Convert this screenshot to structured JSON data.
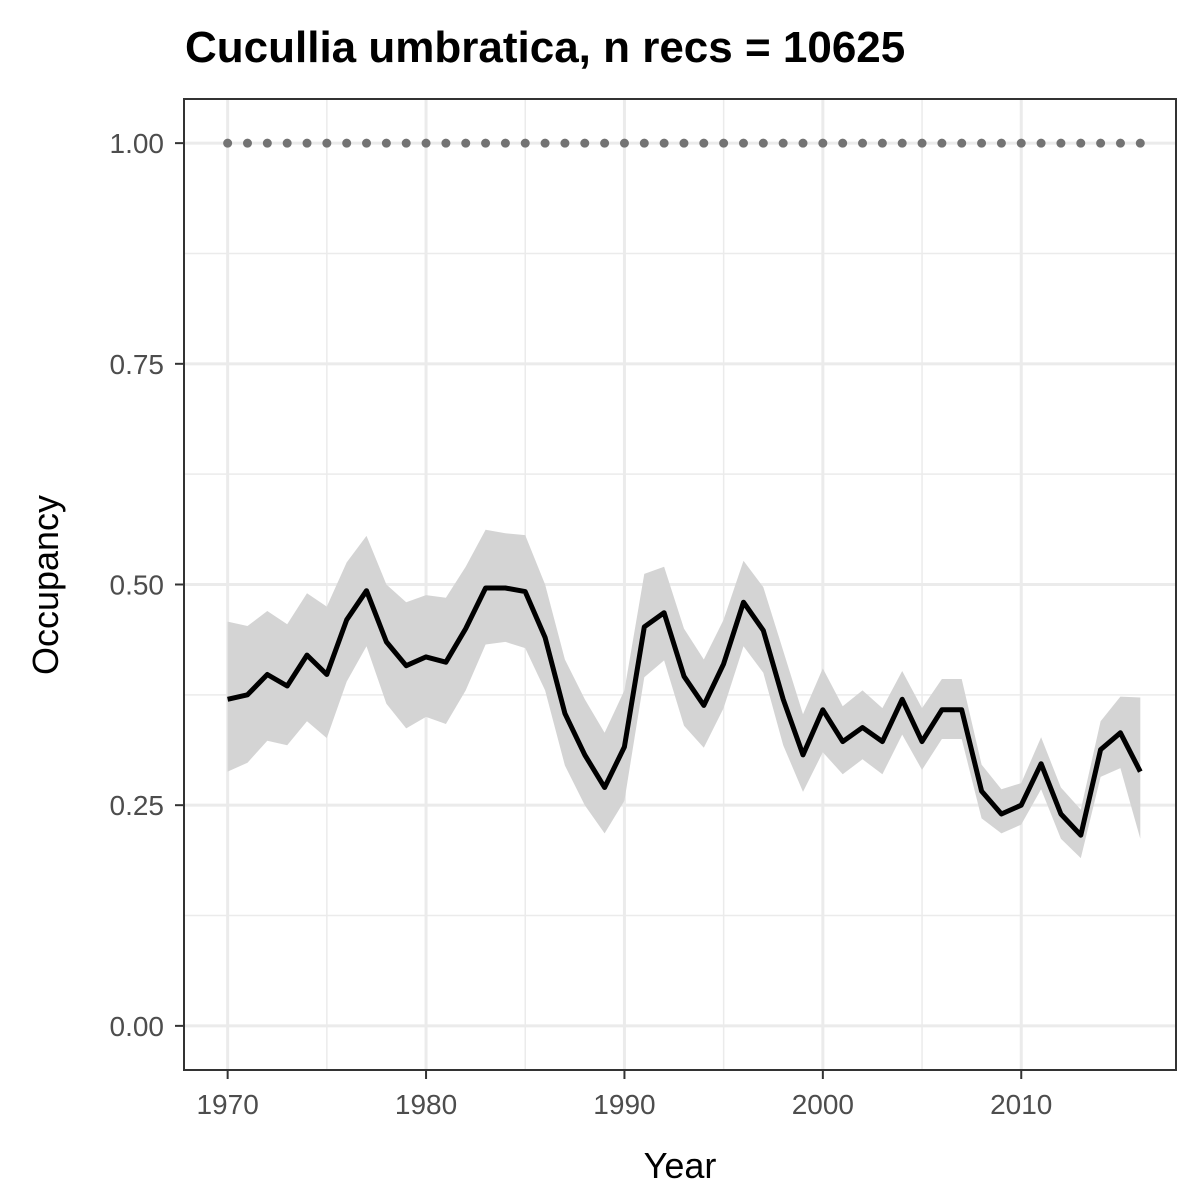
{
  "chart_data": {
    "type": "line",
    "title": "Cucullia umbratica, n recs = 10625",
    "xlabel": "Year",
    "ylabel": "Occupancy",
    "xlim": [
      1967.8,
      2017.8
    ],
    "ylim": [
      -0.05,
      1.05
    ],
    "x_ticks": [
      1970,
      1980,
      1990,
      2000,
      2010
    ],
    "x_tick_labels": [
      "1970",
      "1980",
      "1990",
      "2000",
      "2010"
    ],
    "y_ticks": [
      0,
      0.25,
      0.5,
      0.75,
      1
    ],
    "y_tick_labels": [
      "0.00",
      "0.25",
      "0.50",
      "0.75",
      "1.00"
    ],
    "grid": true,
    "colors": {
      "line": "#000000",
      "ribbon": "#d4d4d4",
      "reference_points": "#737373",
      "grid": "#ebebeb",
      "panel_border": "#333333"
    },
    "series": [
      {
        "type": "line",
        "x": [
          1970,
          1971,
          1972,
          1973,
          1974,
          1975,
          1976,
          1977,
          1978,
          1979,
          1980,
          1981,
          1982,
          1983,
          1984,
          1985,
          1986,
          1987,
          1988,
          1989,
          1990,
          1991,
          1992,
          1993,
          1994,
          1995,
          1996,
          1997,
          1998,
          1999,
          2000,
          2001,
          2002,
          2003,
          2004,
          2005,
          2006,
          2007,
          2008,
          2009,
          2010,
          2011,
          2012,
          2013,
          2014,
          2015,
          2016
        ],
        "y": [
          0.37,
          0.375,
          0.398,
          0.385,
          0.42,
          0.398,
          0.46,
          0.493,
          0.435,
          0.408,
          0.418,
          0.412,
          0.45,
          0.496,
          0.496,
          0.492,
          0.44,
          0.354,
          0.307,
          0.27,
          0.316,
          0.452,
          0.468,
          0.396,
          0.363,
          0.41,
          0.48,
          0.448,
          0.37,
          0.307,
          0.358,
          0.322,
          0.338,
          0.322,
          0.37,
          0.322,
          0.358,
          0.358,
          0.266,
          0.24,
          0.25,
          0.297,
          0.24,
          0.216,
          0.313,
          0.332,
          0.288
        ]
      },
      {
        "type": "band",
        "x": [
          1970,
          1971,
          1972,
          1973,
          1974,
          1975,
          1976,
          1977,
          1978,
          1979,
          1980,
          1981,
          1982,
          1983,
          1984,
          1985,
          1986,
          1987,
          1988,
          1989,
          1990,
          1991,
          1992,
          1993,
          1994,
          1995,
          1996,
          1997,
          1998,
          1999,
          2000,
          2001,
          2002,
          2003,
          2004,
          2005,
          2006,
          2007,
          2008,
          2009,
          2010,
          2011,
          2012,
          2013,
          2014,
          2015,
          2016
        ],
        "lower": [
          0.288,
          0.298,
          0.323,
          0.318,
          0.345,
          0.326,
          0.39,
          0.43,
          0.365,
          0.337,
          0.35,
          0.342,
          0.38,
          0.432,
          0.435,
          0.428,
          0.38,
          0.295,
          0.25,
          0.218,
          0.255,
          0.395,
          0.414,
          0.34,
          0.315,
          0.36,
          0.43,
          0.4,
          0.318,
          0.265,
          0.31,
          0.285,
          0.302,
          0.285,
          0.33,
          0.29,
          0.325,
          0.325,
          0.235,
          0.218,
          0.228,
          0.268,
          0.212,
          0.19,
          0.282,
          0.292,
          0.212
        ],
        "upper": [
          0.458,
          0.453,
          0.47,
          0.455,
          0.49,
          0.475,
          0.525,
          0.555,
          0.5,
          0.48,
          0.488,
          0.485,
          0.52,
          0.562,
          0.558,
          0.556,
          0.5,
          0.415,
          0.37,
          0.332,
          0.38,
          0.512,
          0.52,
          0.45,
          0.415,
          0.46,
          0.527,
          0.497,
          0.425,
          0.353,
          0.405,
          0.362,
          0.38,
          0.36,
          0.402,
          0.36,
          0.393,
          0.393,
          0.296,
          0.268,
          0.275,
          0.327,
          0.27,
          0.245,
          0.345,
          0.373,
          0.372
        ]
      },
      {
        "type": "points",
        "x": [
          1970,
          1971,
          1972,
          1973,
          1974,
          1975,
          1976,
          1977,
          1978,
          1979,
          1980,
          1981,
          1982,
          1983,
          1984,
          1985,
          1986,
          1987,
          1988,
          1989,
          1990,
          1991,
          1992,
          1993,
          1994,
          1995,
          1996,
          1997,
          1998,
          1999,
          2000,
          2001,
          2002,
          2003,
          2004,
          2005,
          2006,
          2007,
          2008,
          2009,
          2010,
          2011,
          2012,
          2013,
          2014,
          2015,
          2016
        ],
        "y": [
          1,
          1,
          1,
          1,
          1,
          1,
          1,
          1,
          1,
          1,
          1,
          1,
          1,
          1,
          1,
          1,
          1,
          1,
          1,
          1,
          1,
          1,
          1,
          1,
          1,
          1,
          1,
          1,
          1,
          1,
          1,
          1,
          1,
          1,
          1,
          1,
          1,
          1,
          1,
          1,
          1,
          1,
          1,
          1,
          1,
          1,
          1
        ]
      }
    ]
  }
}
